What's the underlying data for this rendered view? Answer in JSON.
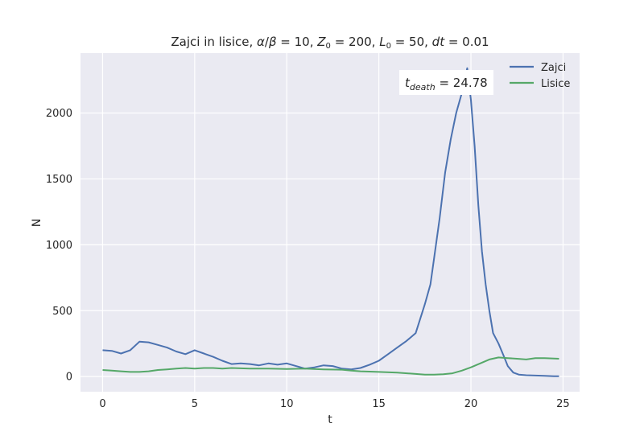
{
  "chart_data": {
    "type": "line",
    "title": {
      "prefix": "Zajci in lisice, ",
      "alpha": "α",
      "slash": "/",
      "beta": "β",
      "eq1": " = 10, ",
      "Z": "Z",
      "Z_sub": "0",
      "eq2": " = 200, ",
      "L": "L",
      "L_sub": "0",
      "eq3": " = 50, ",
      "dt": "dt",
      "eq4": " = 0.01"
    },
    "xlabel": "t",
    "ylabel": "N",
    "xlim": [
      -1.2,
      25.9
    ],
    "ylim": [
      -115,
      2455
    ],
    "xticks": [
      0,
      5,
      10,
      15,
      20,
      25
    ],
    "yticks": [
      0,
      500,
      1000,
      1500,
      2000
    ],
    "grid": true,
    "legend_position": "top-right",
    "annotation": {
      "t": "t",
      "sub": "death",
      "value": " = 24.78"
    },
    "series": [
      {
        "name": "Zajci",
        "color": "#4c72b0",
        "x": [
          0,
          0.5,
          1,
          1.5,
          2,
          2.5,
          3,
          3.5,
          4,
          4.5,
          5,
          5.5,
          6,
          6.5,
          7,
          7.5,
          8,
          8.5,
          9,
          9.5,
          10,
          10.5,
          11,
          11.5,
          12,
          12.5,
          13,
          13.5,
          14,
          14.5,
          15,
          15.5,
          16,
          16.5,
          17,
          17.5,
          17.8,
          18,
          18.3,
          18.6,
          18.9,
          19.2,
          19.5,
          19.8,
          20,
          20.2,
          20.4,
          20.6,
          20.8,
          21,
          21.2,
          21.5,
          21.8,
          22,
          22.3,
          22.6,
          23,
          23.5,
          24,
          24.5,
          24.78
        ],
        "values": [
          200,
          195,
          175,
          200,
          265,
          260,
          240,
          220,
          190,
          170,
          200,
          175,
          150,
          120,
          95,
          100,
          95,
          85,
          100,
          90,
          100,
          80,
          60,
          70,
          85,
          80,
          60,
          55,
          65,
          90,
          120,
          170,
          220,
          270,
          330,
          550,
          700,
          900,
          1200,
          1550,
          1800,
          2000,
          2150,
          2340,
          2100,
          1750,
          1300,
          950,
          700,
          500,
          330,
          250,
          150,
          80,
          30,
          15,
          10,
          8,
          5,
          3,
          2
        ]
      },
      {
        "name": "Lisice",
        "color": "#55a868",
        "x": [
          0,
          0.5,
          1,
          1.5,
          2,
          2.5,
          3,
          3.5,
          4,
          4.5,
          5,
          5.5,
          6,
          6.5,
          7,
          8,
          9,
          10,
          11,
          12,
          13,
          13.5,
          14,
          15,
          16,
          17,
          17.5,
          18,
          18.5,
          19,
          19.5,
          20,
          20.5,
          21,
          21.5,
          22,
          22.5,
          23,
          23.5,
          24,
          24.78
        ],
        "values": [
          50,
          45,
          40,
          35,
          35,
          40,
          50,
          55,
          60,
          65,
          60,
          65,
          65,
          60,
          65,
          60,
          60,
          58,
          60,
          55,
          52,
          45,
          40,
          35,
          30,
          20,
          15,
          15,
          18,
          25,
          45,
          70,
          100,
          130,
          145,
          140,
          135,
          130,
          140,
          140,
          135
        ]
      }
    ]
  }
}
